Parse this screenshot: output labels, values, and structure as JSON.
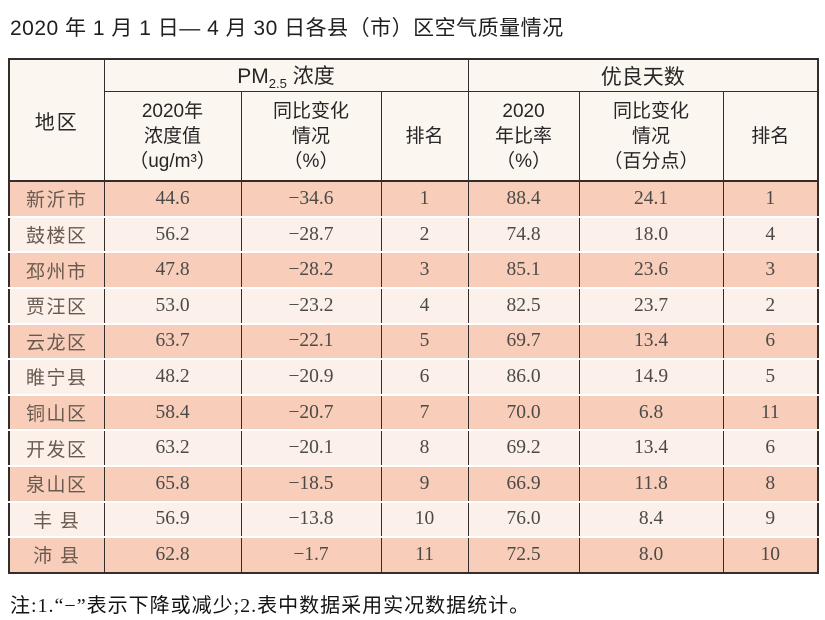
{
  "page": {
    "title": "2020 年 1 月 1 日— 4 月 30 日各县（市）区空气质量情况",
    "note": "注:1.“−”表示下降或减少;2.表中数据采用实况数据统计。"
  },
  "colors": {
    "row_salmon": "#f8ceba",
    "row_light": "#fbf1ea",
    "header_bg": "#fcf6f1",
    "border_dark": "#332e2b"
  },
  "table": {
    "group_headers": {
      "region": "地区",
      "pm25_prefix": "PM",
      "pm25_sub": "2.5",
      "pm25_suffix": " 浓度",
      "good_days": "优良天数"
    },
    "sub_headers": {
      "pm_value": "2020年\n浓度值\n（ug/m³）",
      "pm_change": "同比变化\n情况\n（%）",
      "pm_rank": "排名",
      "good_ratio": "2020\n年比率\n（%）",
      "good_change": "同比变化\n情况\n（百分点）",
      "good_rank": "排名"
    },
    "rows": [
      {
        "region": "新沂市",
        "pm_value": "44.6",
        "pm_change": "−34.6",
        "pm_rank": "1",
        "good_ratio": "88.4",
        "good_change": "24.1",
        "good_rank": "1"
      },
      {
        "region": "鼓楼区",
        "pm_value": "56.2",
        "pm_change": "−28.7",
        "pm_rank": "2",
        "good_ratio": "74.8",
        "good_change": "18.0",
        "good_rank": "4"
      },
      {
        "region": "邳州市",
        "pm_value": "47.8",
        "pm_change": "−28.2",
        "pm_rank": "3",
        "good_ratio": "85.1",
        "good_change": "23.6",
        "good_rank": "3"
      },
      {
        "region": "贾汪区",
        "pm_value": "53.0",
        "pm_change": "−23.2",
        "pm_rank": "4",
        "good_ratio": "82.5",
        "good_change": "23.7",
        "good_rank": "2"
      },
      {
        "region": "云龙区",
        "pm_value": "63.7",
        "pm_change": "−22.1",
        "pm_rank": "5",
        "good_ratio": "69.7",
        "good_change": "13.4",
        "good_rank": "6"
      },
      {
        "region": "睢宁县",
        "pm_value": "48.2",
        "pm_change": "−20.9",
        "pm_rank": "6",
        "good_ratio": "86.0",
        "good_change": "14.9",
        "good_rank": "5"
      },
      {
        "region": "铜山区",
        "pm_value": "58.4",
        "pm_change": "−20.7",
        "pm_rank": "7",
        "good_ratio": "70.0",
        "good_change": "6.8",
        "good_rank": "11"
      },
      {
        "region": "开发区",
        "pm_value": "63.2",
        "pm_change": "−20.1",
        "pm_rank": "8",
        "good_ratio": "69.2",
        "good_change": "13.4",
        "good_rank": "6"
      },
      {
        "region": "泉山区",
        "pm_value": "65.8",
        "pm_change": "−18.5",
        "pm_rank": "9",
        "good_ratio": "66.9",
        "good_change": "11.8",
        "good_rank": "8"
      },
      {
        "region": "丰 县",
        "pm_value": "56.9",
        "pm_change": "−13.8",
        "pm_rank": "10",
        "good_ratio": "76.0",
        "good_change": "8.4",
        "good_rank": "9"
      },
      {
        "region": "沛 县",
        "pm_value": "62.8",
        "pm_change": "−1.7",
        "pm_rank": "11",
        "good_ratio": "72.5",
        "good_change": "8.0",
        "good_rank": "10"
      }
    ]
  }
}
